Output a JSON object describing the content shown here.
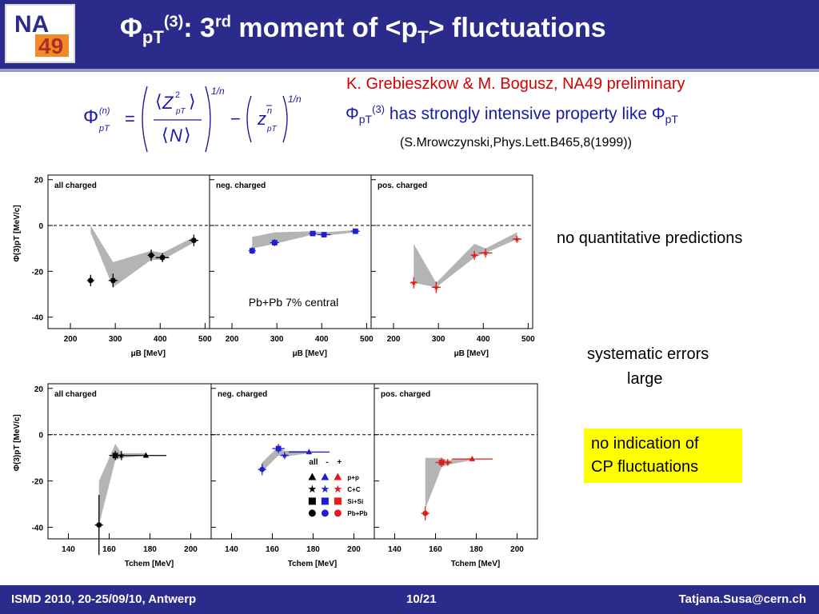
{
  "header": {
    "logo_text_top": "NA",
    "logo_text_bottom": "49",
    "title_parts": [
      "Φ",
      "pT",
      "(3)",
      ": 3",
      "rd",
      " moment of <p",
      "T",
      "> fluctuations"
    ]
  },
  "formula": {
    "phi": "Φ",
    "n": "n",
    "pT": "pT",
    "Z": "Z",
    "two": "2",
    "N": "N",
    "z": "z",
    "exp": "1/n"
  },
  "authors": "K. Grebieszkow & M. Bogusz, NA49 preliminary",
  "property_line": [
    "Φ",
    "pT",
    "(3)",
    " has strongly intensive property like Φ",
    "pT"
  ],
  "reference": "(S.Mrowczynski,Phys.Lett.B465,8(1999))",
  "notes": {
    "no_predictions": "no quantitative predictions",
    "systematic_1": "systematic errors",
    "systematic_2": "large",
    "no_cp_1": "no indication of",
    "no_cp_2": "CP fluctuations"
  },
  "footer": {
    "left": "ISMD 2010, 20-25/09/10,  Antwerp",
    "center": "10/21",
    "right": "Tatjana.Susa@cern.ch"
  },
  "colors": {
    "header_bg": "#2b2b8c",
    "black": "#000000",
    "blue": "#1f1fd0",
    "red": "#e31b1b",
    "band": "#b4b4b4",
    "yellow": "#ffff00"
  },
  "chart_data": [
    {
      "type": "scatter",
      "panels": [
        "all charged",
        "neg. charged",
        "pos. charged"
      ],
      "ylabel": "Φ(3)pT  [MeV/c]",
      "xlabel": "μB [MeV]",
      "xlim": [
        150,
        510
      ],
      "ylim": [
        -45,
        22
      ],
      "xticks": [
        200,
        300,
        400,
        500
      ],
      "yticks": [
        20,
        0,
        -20,
        -40
      ],
      "annotation": "Pb+Pb 7% central",
      "series": [
        {
          "panel": 0,
          "color": "black",
          "marker": "circle",
          "x": [
            245,
            295,
            380,
            405,
            475
          ],
          "y": [
            -24,
            -24,
            -13,
            -14,
            -6.5
          ],
          "xerr": [
            8,
            10,
            8,
            15,
            10
          ],
          "yerr": [
            2.5,
            3,
            2.5,
            2,
            2.5
          ],
          "band_upper": [
            0,
            -16,
            -11,
            -12,
            -5
          ],
          "band_lower": [
            -3,
            -27,
            -15,
            -15,
            -7.5
          ]
        },
        {
          "panel": 1,
          "color": "blue",
          "marker": "square",
          "x": [
            245,
            295,
            380,
            405,
            475
          ],
          "y": [
            -11,
            -7.5,
            -3.5,
            -4,
            -2.5
          ],
          "xerr": [
            8,
            10,
            8,
            15,
            10
          ],
          "yerr": [
            1.5,
            1.5,
            1,
            1,
            1
          ],
          "band_upper": [
            -5,
            -3,
            -2.5,
            -3,
            -2
          ],
          "band_lower": [
            -10,
            -8,
            -4,
            -4.5,
            -3
          ]
        },
        {
          "panel": 2,
          "color": "red",
          "marker": "star",
          "x": [
            245,
            295,
            380,
            405,
            475
          ],
          "y": [
            -25,
            -27,
            -13,
            -12,
            -6
          ],
          "xerr": [
            8,
            10,
            8,
            15,
            10
          ],
          "yerr": [
            2.5,
            2.5,
            2,
            2,
            1.5
          ],
          "band_upper": [
            -8,
            -25,
            -8,
            -10,
            -3
          ],
          "band_lower": [
            -25,
            -27,
            -14,
            -12,
            -6
          ]
        }
      ]
    },
    {
      "type": "scatter",
      "panels": [
        "all charged",
        "neg. charged",
        "pos. charged"
      ],
      "ylabel": "Φ(3)pT  [MeV/c]",
      "xlabel": "Tchem [MeV]",
      "xlim": [
        130,
        210
      ],
      "ylim": [
        -45,
        22
      ],
      "xticks": [
        140,
        160,
        180,
        200
      ],
      "yticks": [
        20,
        0,
        -20,
        -40
      ],
      "legend": {
        "header": [
          "all",
          "-",
          "+"
        ],
        "rows": [
          {
            "label": "p+p",
            "marker": "triangle"
          },
          {
            "label": "C+C",
            "marker": "star"
          },
          {
            "label": "Si+Si",
            "marker": "square"
          },
          {
            "label": "Pb+Pb",
            "marker": "circle"
          }
        ],
        "colors": [
          "black",
          "blue",
          "red"
        ]
      },
      "series": [
        {
          "panel": 0,
          "color": "black",
          "points": [
            {
              "x": 155,
              "y": -39,
              "marker": "circle",
              "xerr": 2,
              "yerr": 13
            },
            {
              "x": 163,
              "y": -9,
              "marker": "square",
              "xerr": 3,
              "yerr": 2
            },
            {
              "x": 166,
              "y": -9,
              "marker": "star",
              "xerr": 2,
              "yerr": 2
            },
            {
              "x": 178,
              "y": -9,
              "marker": "triangle",
              "xerr": 10,
              "yerr": 1
            }
          ],
          "band_upper": [
            -20,
            -4,
            -8,
            -8
          ],
          "band_lower": [
            -39,
            -11,
            -10,
            -9
          ]
        },
        {
          "panel": 1,
          "color": "blue",
          "points": [
            {
              "x": 155,
              "y": -15,
              "marker": "circle",
              "xerr": 2,
              "yerr": 2.5
            },
            {
              "x": 163,
              "y": -6,
              "marker": "square",
              "xerr": 3,
              "yerr": 2
            },
            {
              "x": 166,
              "y": -9,
              "marker": "star",
              "xerr": 2,
              "yerr": 1.5
            },
            {
              "x": 178,
              "y": -7.5,
              "marker": "triangle",
              "xerr": 10,
              "yerr": 1
            }
          ],
          "band_upper": [
            -12,
            -5,
            -7,
            -7
          ],
          "band_lower": [
            -16,
            -9,
            -9.5,
            -8
          ]
        },
        {
          "panel": 2,
          "color": "red",
          "points": [
            {
              "x": 155,
              "y": -34,
              "marker": "circle",
              "xerr": 2,
              "yerr": 3
            },
            {
              "x": 163,
              "y": -12,
              "marker": "square",
              "xerr": 3,
              "yerr": 2
            },
            {
              "x": 166,
              "y": -12,
              "marker": "star",
              "xerr": 2,
              "yerr": 1.5
            },
            {
              "x": 178,
              "y": -10.5,
              "marker": "triangle",
              "xerr": 10,
              "yerr": 1
            }
          ],
          "band_upper": [
            -10,
            -10,
            -11,
            -10
          ],
          "band_lower": [
            -32,
            -14,
            -13,
            -11
          ]
        }
      ]
    }
  ]
}
